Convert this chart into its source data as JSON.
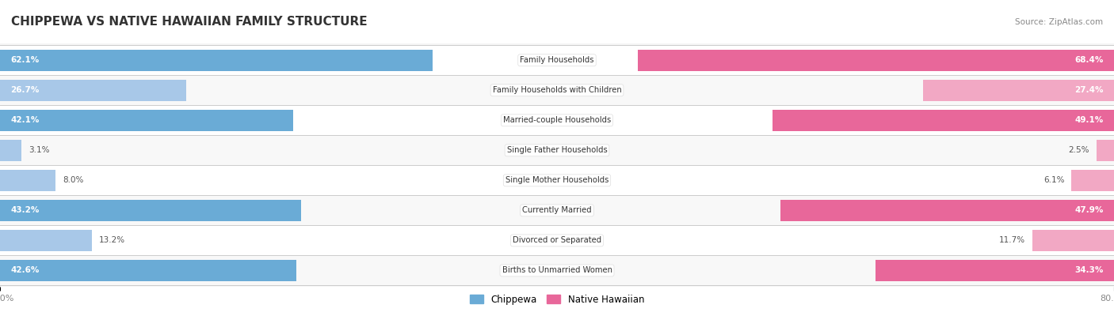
{
  "title": "CHIPPEWA VS NATIVE HAWAIIAN FAMILY STRUCTURE",
  "source": "Source: ZipAtlas.com",
  "categories": [
    "Family Households",
    "Family Households with Children",
    "Married-couple Households",
    "Single Father Households",
    "Single Mother Households",
    "Currently Married",
    "Divorced or Separated",
    "Births to Unmarried Women"
  ],
  "chippewa_values": [
    62.1,
    26.7,
    42.1,
    3.1,
    8.0,
    43.2,
    13.2,
    42.6
  ],
  "native_hawaiian_values": [
    68.4,
    27.4,
    49.1,
    2.5,
    6.1,
    47.9,
    11.7,
    34.3
  ],
  "chippewa_color_strong": "#6aabd6",
  "chippewa_color_light": "#a8c8e8",
  "native_hawaiian_color_strong": "#e8679a",
  "native_hawaiian_color_light": "#f2a8c4",
  "axis_max": 80.0,
  "background_color": "#f0f0f0",
  "row_bg_even": "#f8f8f8",
  "row_bg_odd": "#ffffff",
  "legend_chippewa": "Chippewa",
  "legend_native_hawaiian": "Native Hawaiian",
  "strong_rows": [
    0,
    2,
    5,
    7
  ],
  "label_threshold": 20.0
}
